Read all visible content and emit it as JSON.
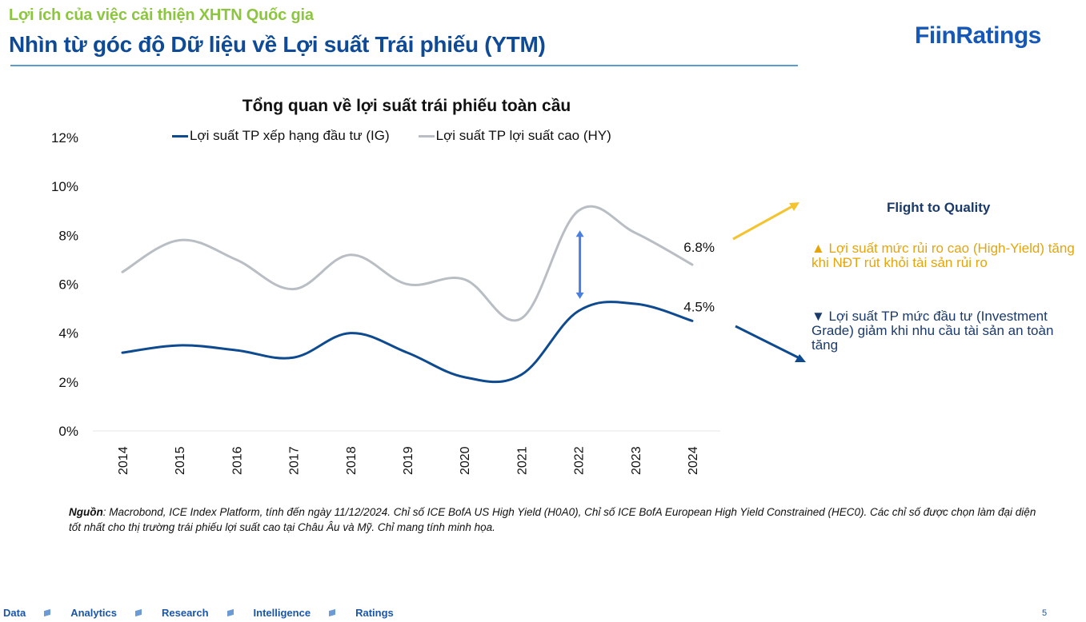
{
  "header": {
    "subtitle": "Lợi ích của việc cải thiện XHTN Quốc gia",
    "title": "Nhìn từ góc độ Dữ liệu về Lợi suất Trái phiếu (YTM)",
    "logo": "FiinRatings"
  },
  "chart_data": {
    "type": "line",
    "title": "Tổng quan về lợi suất trái phiếu toàn cầu",
    "xlabel": "",
    "ylabel": "",
    "categories": [
      "2014",
      "2015",
      "2016",
      "2017",
      "2018",
      "2019",
      "2020",
      "2021",
      "2022",
      "2023",
      "2024"
    ],
    "yticks": [
      "0%",
      "2%",
      "4%",
      "6%",
      "8%",
      "10%",
      "12%"
    ],
    "ylim": [
      0,
      12
    ],
    "grid": false,
    "legend_position": "top",
    "series": [
      {
        "name": "Lợi suất TP xếp hạng đầu tư (IG)",
        "color": "#0e4a8f",
        "values": [
          3.2,
          3.5,
          3.3,
          3.0,
          4.0,
          3.2,
          2.2,
          2.3,
          4.9,
          5.2,
          4.5
        ]
      },
      {
        "name": "Lợi suất TP lợi suất cao (HY)",
        "color": "#b8bec4",
        "values": [
          6.5,
          7.8,
          7.0,
          5.8,
          7.2,
          6.0,
          6.2,
          4.6,
          9.0,
          8.1,
          6.8
        ]
      }
    ],
    "annotations": [
      {
        "text": "6.8%",
        "series": 1,
        "category": "2024"
      },
      {
        "text": "4.5%",
        "series": 0,
        "category": "2024"
      },
      {
        "type": "double-arrow",
        "category": "2022",
        "from": 8.2,
        "to": 5.4,
        "color": "#4a7fe0"
      }
    ]
  },
  "callouts": {
    "title": "Flight to Quality",
    "up_text": "▲ Lợi suất mức rủi ro cao (High-Yield) tăng khi NĐT rút khỏi tài sản rủi ro",
    "down_text": "▼ Lợi suất TP mức đầu tư (Investment Grade) giảm khi nhu cầu tài sản an toàn tăng",
    "up_color": "#f4c430",
    "down_color": "#0e4a8f"
  },
  "source": {
    "label": "Nguồn",
    "text": ": Macrobond, ICE Index Platform, tính đến ngày 11/12/2024. Chỉ số ICE BofA US High Yield (H0A0), Chỉ số ICE BofA European High Yield Constrained (HEC0). Các chỉ số được chọn làm đại diện tốt nhất cho thị trường trái phiếu lợi suất cao tại Châu Âu và Mỹ. Chỉ mang tính minh họa."
  },
  "footer": {
    "items": [
      "Data",
      "Analytics",
      "Research",
      "Intelligence",
      "Ratings"
    ],
    "page_number": "5"
  }
}
